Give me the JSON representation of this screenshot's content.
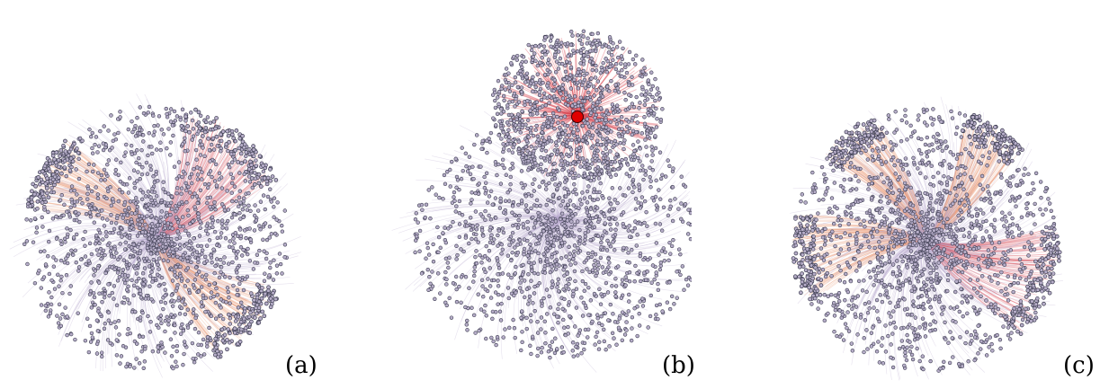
{
  "figure": {
    "panels": [
      {
        "label": "(a)",
        "layout": "radial-center",
        "highlight_color": "#d9454f",
        "secondary_color": "#e8946a"
      },
      {
        "label": "(b)",
        "layout": "top-cluster",
        "highlight_color": "#d9454f",
        "secondary_color": "#e8946a",
        "hub_marker_color": "#e00000"
      },
      {
        "label": "(c)",
        "layout": "radial-center",
        "highlight_color": "#d9454f",
        "secondary_color": "#e8946a"
      }
    ],
    "colors": {
      "node_fill": "#b7aec9",
      "node_stroke": "#3b3b4f",
      "edge_base": "#b8a8cf",
      "background": "#ffffff"
    }
  }
}
